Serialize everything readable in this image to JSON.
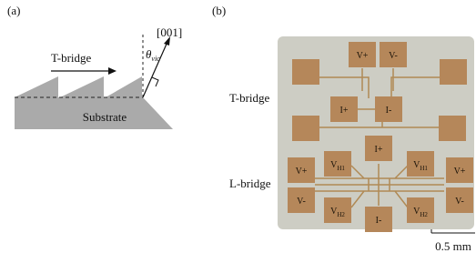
{
  "panel_a": {
    "label": "(a)",
    "direction_label": "T-bridge",
    "axis_label": "[001]",
    "angle": {
      "symbol": "θ",
      "sub": "vic"
    },
    "substrate": "Substrate"
  },
  "panel_b": {
    "label": "(b)",
    "t_bridge": "T-bridge",
    "l_bridge": "L-bridge",
    "scale_bar": "0.5 mm",
    "pads": [
      {
        "main": "V+"
      },
      {
        "main": "V-"
      },
      {
        "main": "I+"
      },
      {
        "main": "I-"
      },
      {
        "main": "I+"
      },
      {
        "main": "V",
        "sub": "H1"
      },
      {
        "main": "V",
        "sub": "H1"
      },
      {
        "main": "V+"
      },
      {
        "main": "V+"
      },
      {
        "main": "V-"
      },
      {
        "main": "V-"
      },
      {
        "main": "V",
        "sub": "H2"
      },
      {
        "main": "V",
        "sub": "H2"
      },
      {
        "main": "I-"
      }
    ]
  }
}
